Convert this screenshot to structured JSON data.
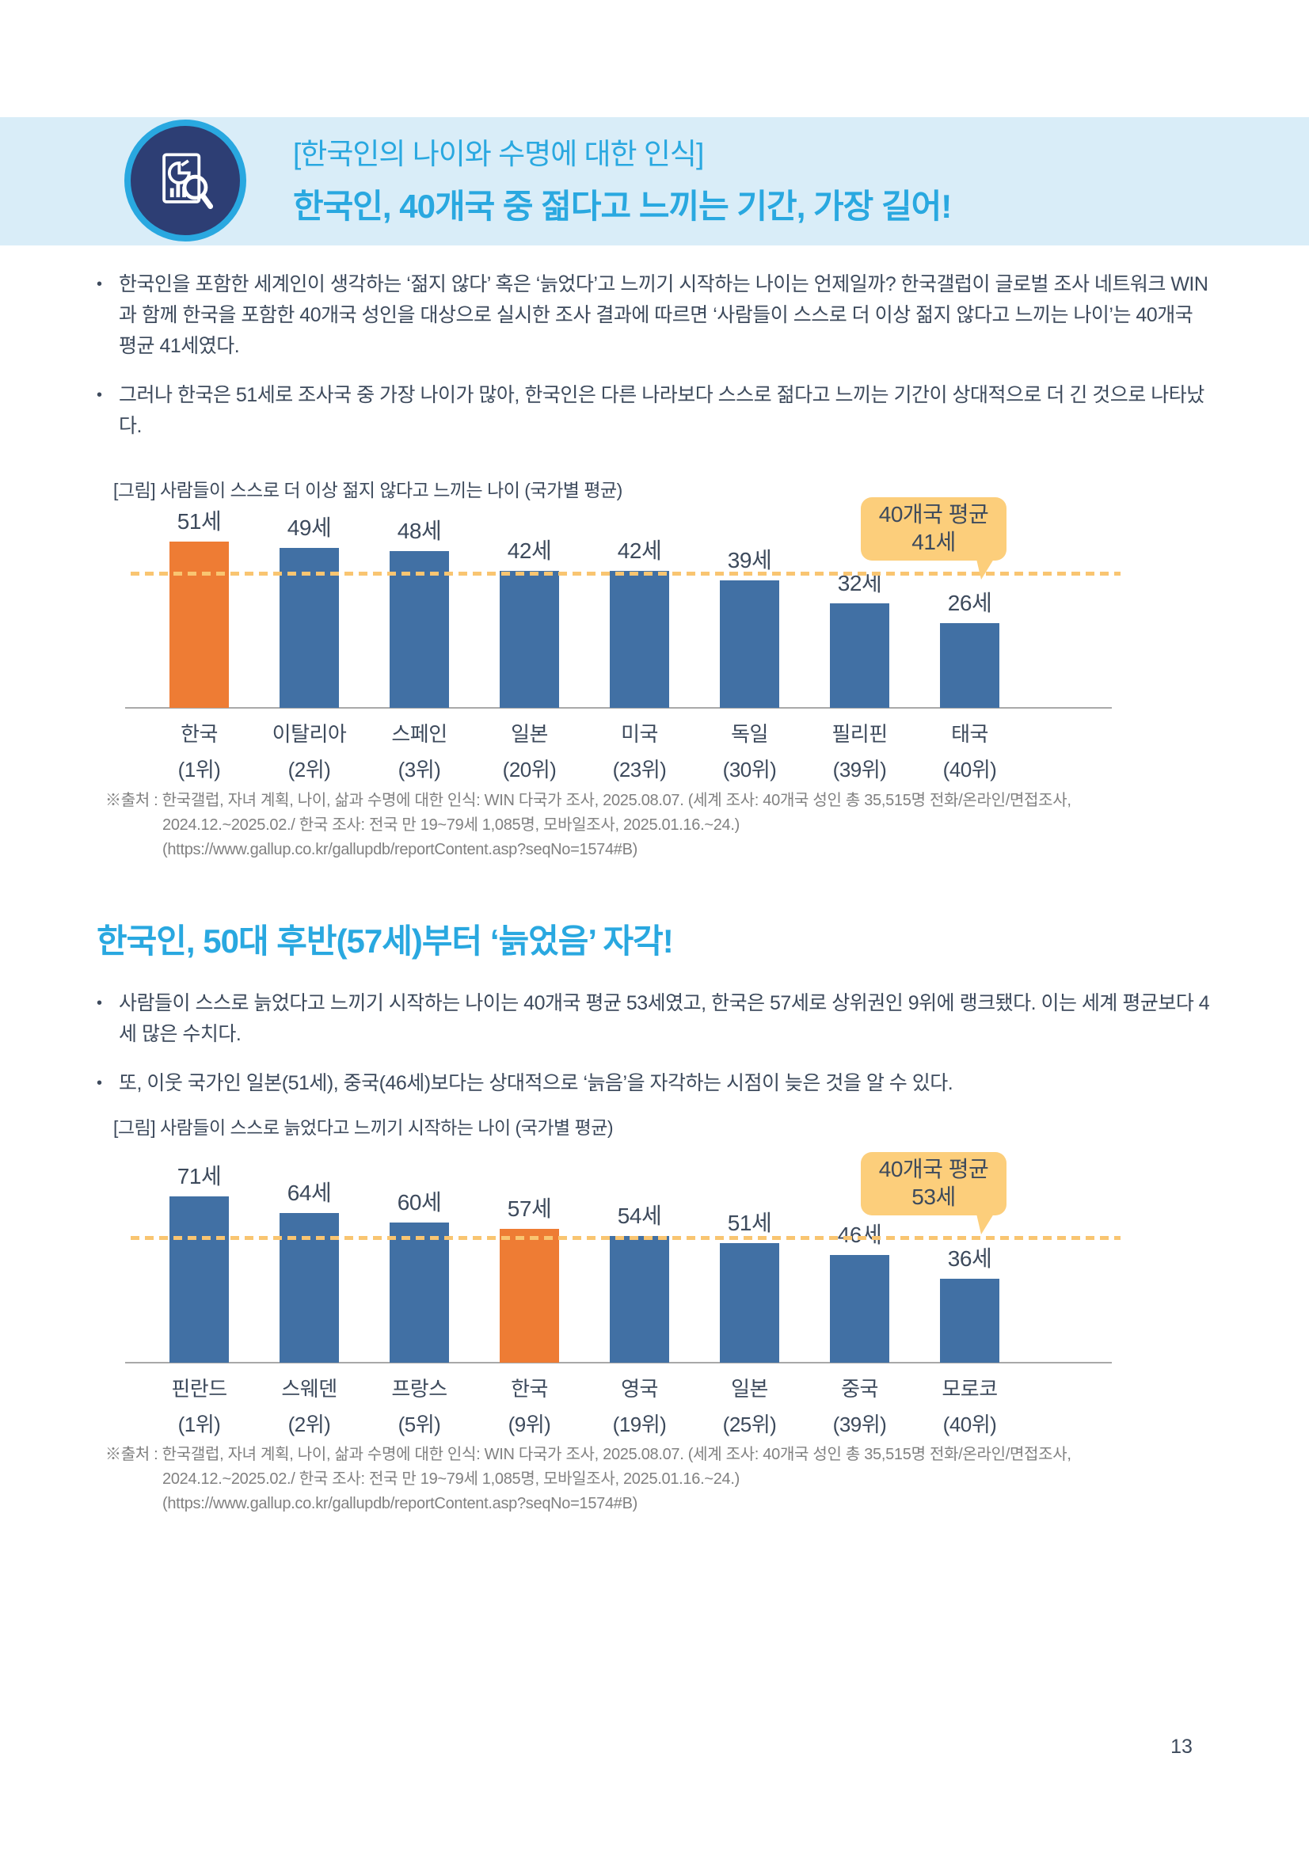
{
  "header": {
    "tag_line": "[한국인의 나이와 수명에 대한 인식]",
    "title": "한국인, 40개국 중 젊다고 느끼는 기간, 가장 길어!"
  },
  "intro": {
    "bullets": [
      "한국인을 포함한 세계인이 생각하는 ‘젊지 않다’ 혹은 ‘늙었다’고 느끼기 시작하는 나이는 언제일까? 한국갤럽이 글로벌 조사 네트워크 WIN과 함께 한국을 포함한 40개국 성인을 대상으로 실시한 조사 결과에 따르면 ‘사람들이 스스로 더 이상 젊지 않다고 느끼는 나이’는 40개국 평균 41세였다.",
      "그러나 한국은 51세로 조사국 중 가장 나이가 많아, 한국인은 다른 나라보다 스스로 젊다고 느끼는 기간이 상대적으로 더 긴 것으로 나타났다."
    ]
  },
  "section2": {
    "title": "한국인, 50대 후반(57세)부터 ‘늙었음’ 자각!",
    "bullets": [
      "사람들이 스스로 늙었다고 느끼기 시작하는 나이는 40개국 평균 53세였고, 한국은 57세로 상위권인 9위에 랭크됐다. 이는 세계 평균보다 4세 많은 수치다.",
      "또, 이웃 국가인 일본(51세), 중국(46세)보다는 상대적으로 ‘늙음’을 자각하는 시점이 늦은 것을 알 수 있다."
    ]
  },
  "source1": {
    "lines": [
      "※출처 : 한국갤럽, 자녀 계획, 나이, 삶과 수명에 대한 인식: WIN 다국가 조사, 2025.08.07. (세계 조사: 40개국 성인 총 35,515명 전화/온라인/면접조사,",
      "2024.12.~2025.02./ 한국 조사: 전국 만 19~79세 1,085명, 모바일조사, 2025.01.16.~24.)",
      "(https://www.gallup.co.kr/gallupdb/reportContent.asp?seqNo=1574#B)"
    ]
  },
  "source2": {
    "lines": [
      "※출처 : 한국갤럽, 자녀 계획, 나이, 삶과 수명에 대한 인식: WIN 다국가 조사, 2025.08.07. (세계 조사: 40개국 성인 총 35,515명 전화/온라인/면접조사,",
      "2024.12.~2025.02./ 한국 조사: 전국 만 19~79세 1,085명, 모바일조사, 2025.01.16.~24.)",
      "(https://www.gallup.co.kr/gallupdb/reportContent.asp?seqNo=1574#B)"
    ]
  },
  "page_number": "13",
  "chart_data": [
    {
      "type": "bar",
      "title": "[그림] 사람들이 스스로 더 이상 젊지 않다고 느끼는 나이 (국가별 평균)",
      "categories": [
        "한국",
        "이탈리아",
        "스페인",
        "일본",
        "미국",
        "독일",
        "필리핀",
        "태국"
      ],
      "ranks": [
        "(1위)",
        "(2위)",
        "(3위)",
        "(20위)",
        "(23위)",
        "(30위)",
        "(39위)",
        "(40위)"
      ],
      "values": [
        51,
        49,
        48,
        42,
        42,
        39,
        32,
        26
      ],
      "value_labels": [
        "51세",
        "49세",
        "48세",
        "42세",
        "42세",
        "39세",
        "32세",
        "26세"
      ],
      "highlight_index": 0,
      "ylim": [
        0,
        51
      ],
      "grid": false,
      "legend": "none",
      "average_line": {
        "value": 41,
        "label_line1": "40개국 평균",
        "label_line2": "41세"
      },
      "colors": {
        "bar": "#4170a4",
        "highlight": "#ee7c34",
        "avg_line": "#f9c571",
        "callout_bg": "#fcce7b"
      }
    },
    {
      "type": "bar",
      "title": "[그림] 사람들이 스스로 늙었다고 느끼기 시작하는 나이 (국가별 평균)",
      "categories": [
        "핀란드",
        "스웨덴",
        "프랑스",
        "한국",
        "영국",
        "일본",
        "중국",
        "모로코"
      ],
      "ranks": [
        "(1위)",
        "(2위)",
        "(5위)",
        "(9위)",
        "(19위)",
        "(25위)",
        "(39위)",
        "(40위)"
      ],
      "values": [
        71,
        64,
        60,
        57,
        54,
        51,
        46,
        36
      ],
      "value_labels": [
        "71세",
        "64세",
        "60세",
        "57세",
        "54세",
        "51세",
        "46세",
        "36세"
      ],
      "highlight_index": 3,
      "ylim": [
        0,
        71
      ],
      "grid": false,
      "legend": "none",
      "average_line": {
        "value": 53,
        "label_line1": "40개국 평균",
        "label_line2": "53세"
      },
      "colors": {
        "bar": "#4170a4",
        "highlight": "#ee7c34",
        "avg_line": "#f9c571",
        "callout_bg": "#fcce7b"
      }
    }
  ]
}
